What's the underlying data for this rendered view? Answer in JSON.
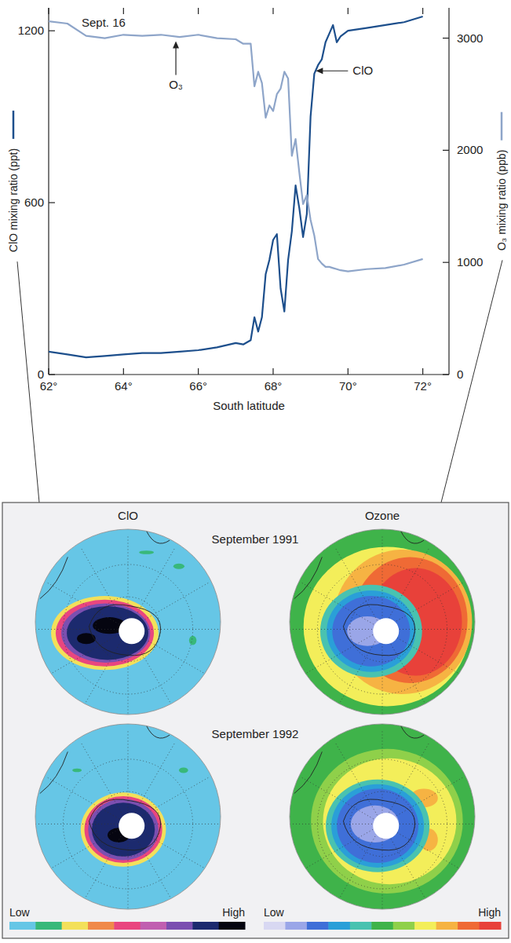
{
  "chart_data": {
    "type": "line",
    "annotations": [
      {
        "text": "Sept. 16"
      },
      {
        "text": "ClO",
        "x": 69.12,
        "y": 1060
      },
      {
        "text": "O₃",
        "x": 65.4,
        "y": 2980,
        "axis": "y2"
      }
    ],
    "x_label": "South latitude",
    "y_label": "ClO mixing ratio (ppt)",
    "y2_label": "O₃ mixing ratio (ppb)",
    "x": [
      62,
      62.5,
      63,
      63.5,
      64,
      64.5,
      65,
      65.5,
      66,
      66.5,
      67,
      67.2,
      67.4,
      67.5,
      67.6,
      67.7,
      67.8,
      67.9,
      68,
      68.1,
      68.2,
      68.3,
      68.4,
      68.5,
      68.6,
      68.7,
      68.8,
      68.9,
      69,
      69.1,
      69.2,
      69.3,
      69.4,
      69.5,
      69.6,
      69.7,
      69.8,
      70,
      70.5,
      71,
      71.5,
      72
    ],
    "xlim": [
      62,
      72.7
    ],
    "xticks": [
      {
        "value": 62,
        "label": "62°"
      },
      {
        "value": 64,
        "label": "64°"
      },
      {
        "value": 66,
        "label": "66°"
      },
      {
        "value": 68,
        "label": "68°"
      },
      {
        "value": 70,
        "label": "70°"
      },
      {
        "value": 72,
        "label": "72°"
      }
    ],
    "ylim": [
      0,
      1280
    ],
    "yticks": [
      0,
      600,
      1200
    ],
    "y2lim": [
      0,
      3270
    ],
    "y2ticks": [
      0,
      1000,
      2000,
      3000
    ],
    "series": [
      {
        "name": "ClO",
        "color": "#1d4f8c",
        "values": [
          80,
          70,
          60,
          65,
          70,
          75,
          75,
          80,
          85,
          95,
          110,
          105,
          120,
          200,
          150,
          200,
          350,
          400,
          470,
          490,
          300,
          220,
          400,
          500,
          660,
          580,
          480,
          560,
          900,
          1050,
          1080,
          1100,
          1160,
          1190,
          1220,
          1160,
          1180,
          1200,
          1210,
          1220,
          1230,
          1250
        ]
      },
      {
        "name": "O₃",
        "color": "#8ea5c9",
        "axis": "y2",
        "values": [
          3150,
          3130,
          3020,
          3000,
          3030,
          3020,
          3030,
          3010,
          3030,
          3000,
          2990,
          2950,
          2950,
          2570,
          2700,
          2600,
          2290,
          2400,
          2350,
          2500,
          2550,
          2700,
          2640,
          1950,
          2100,
          1800,
          1520,
          1600,
          1380,
          1240,
          1030,
          990,
          960,
          960,
          950,
          940,
          930,
          920,
          940,
          950,
          980,
          1030
        ]
      }
    ]
  },
  "maps": {
    "columns": [
      {
        "title": "ClO",
        "colors": [
          "#66c6e6",
          "#38b87a",
          "#f3e05a",
          "#f08a4a",
          "#e9467f",
          "#c05fb0",
          "#7b4fb0",
          "#1c2a6e",
          "#050510"
        ]
      },
      {
        "title": "Ozone",
        "colors": [
          "#d8d8f2",
          "#9aa6e8",
          "#3f6fd8",
          "#2a9fd8",
          "#49c2b0",
          "#3fb34a",
          "#8fd04a",
          "#f3ee5a",
          "#f6b343",
          "#ef6a35",
          "#e8413a"
        ]
      }
    ],
    "rows": [
      "September 1991",
      "September 1992"
    ],
    "scale": {
      "low": "Low",
      "high": "High"
    }
  }
}
